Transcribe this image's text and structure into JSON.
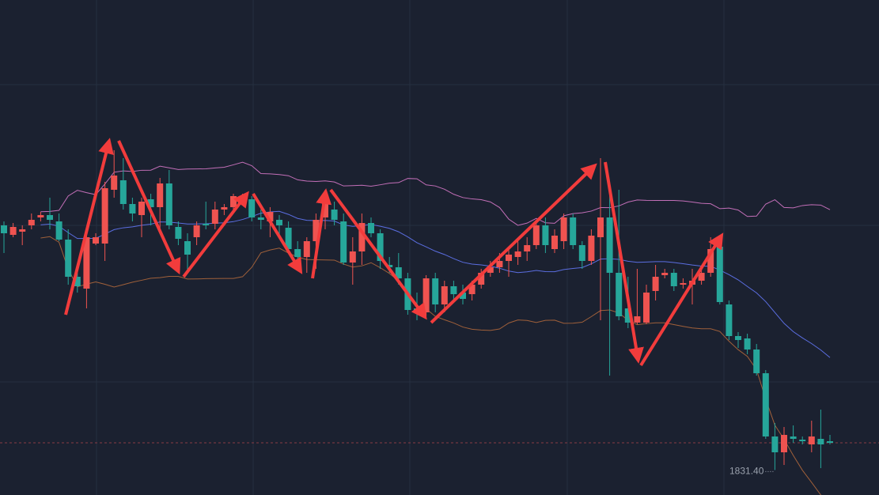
{
  "chart_data": {
    "type": "candlestick",
    "open": [
      1908.75,
      1905.75,
      1906.75,
      1908.75,
      1911.25,
      1912,
      1910,
      1904.25,
      1892.5,
      1888.75,
      1903,
      1903,
      1920,
      1923,
      1915.5,
      1912,
      1917,
      1914.5,
      1922,
      1908.25,
      1903.75,
      1905,
      1909.25,
      1909.25,
      1913.75,
      1914.5,
      1917.5,
      1917,
      1911.25,
      1910,
      1910.5,
      1908,
      1901.25,
      1898.75,
      1903.75,
      1911.25,
      1913.75,
      1910,
      1897,
      1900.5,
      1909.5,
      1906.25,
      1896.25,
      1895.5,
      1892,
      1882.5,
      1881.25,
      1892,
      1883.75,
      1889.5,
      1887.5,
      1887,
      1890,
      1893.75,
      1895.5,
      1897.5,
      1898.75,
      1900.5,
      1902.5,
      1908.75,
      1901.25,
      1903.75,
      1911.25,
      1902.5,
      1897.5,
      1905,
      1911.25,
      1893.75,
      1882.5,
      1878,
      1878,
      1888,
      1893,
      1893.75,
      1890,
      1890,
      1891.25,
      1893.75,
      1902,
      1883.75,
      1873.75,
      1873,
      1869.5,
      1862,
      1842,
      1837,
      1842,
      1841,
      1839.5,
      1841.25,
      1840.5
    ],
    "high": [
      1910,
      1909.5,
      1908.75,
      1912.5,
      1913,
      1917.5,
      1912.5,
      1907.5,
      1893.75,
      1906.25,
      1906.25,
      1922.5,
      1932.5,
      1930,
      1917.5,
      1917.5,
      1918.75,
      1923.75,
      1926.25,
      1910,
      1906.25,
      1910,
      1916.25,
      1916.25,
      1915.5,
      1918.75,
      1918.75,
      1918,
      1913.75,
      1914.5,
      1912,
      1910,
      1903.75,
      1905,
      1912.5,
      1920,
      1916.25,
      1912.5,
      1905,
      1912.5,
      1911.25,
      1907.5,
      1898.75,
      1900,
      1893.75,
      1887.5,
      1893,
      1893.75,
      1891.25,
      1891.25,
      1890,
      1891.25,
      1895,
      1897.5,
      1900,
      1901.25,
      1903.75,
      1905,
      1910,
      1911.25,
      1907.5,
      1912.5,
      1912.5,
      1903.75,
      1907.5,
      1930,
      1920.5,
      1920,
      1892.5,
      1895,
      1890,
      1896.25,
      1895,
      1895,
      1892,
      1895,
      1895,
      1905,
      1903.75,
      1885,
      1875,
      1874.5,
      1871.25,
      1863,
      1846.25,
      1845,
      1845.5,
      1842,
      1847,
      1850.5,
      1842.5
    ],
    "low": [
      1900,
      1905,
      1902.5,
      1907.5,
      1910,
      1907.5,
      1903.75,
      1890,
      1887.5,
      1882.5,
      1902.5,
      1897.5,
      1917.5,
      1913.75,
      1910,
      1905,
      1908.75,
      1907.5,
      1907.5,
      1902.5,
      1893.75,
      1902.5,
      1907.5,
      1907.5,
      1912,
      1913,
      1916,
      1910,
      1907.5,
      1905,
      1905,
      1900,
      1896.25,
      1893.75,
      1895,
      1907.5,
      1908.75,
      1896.25,
      1890,
      1896.25,
      1905,
      1895,
      1893.75,
      1890,
      1880.5,
      1878.75,
      1880,
      1881.25,
      1881.25,
      1885,
      1883.75,
      1885,
      1888.75,
      1892.5,
      1893.75,
      1892.5,
      1896.25,
      1897.5,
      1901.25,
      1900,
      1900,
      1901.25,
      1901.25,
      1895,
      1896.25,
      1878.75,
      1861.25,
      1878.75,
      1876.25,
      1877.5,
      1877.5,
      1885,
      1892,
      1888,
      1888.75,
      1883.75,
      1890,
      1892.5,
      1883.75,
      1872.5,
      1870,
      1868,
      1861.25,
      1841.25,
      1831.4,
      1833,
      1840,
      1839.5,
      1837,
      1832,
      1839.5
    ],
    "close": [
      1906.25,
      1908.25,
      1907.5,
      1910.5,
      1912,
      1910.5,
      1904.25,
      1892.5,
      1889.5,
      1905,
      1905,
      1920.5,
      1924.5,
      1915.5,
      1912.5,
      1916.25,
      1914.5,
      1922,
      1908.75,
      1904.5,
      1899.5,
      1908.75,
      1908.75,
      1913.75,
      1914.5,
      1918,
      1918,
      1911.25,
      1910.5,
      1913,
      1908.75,
      1901.25,
      1898.75,
      1903.75,
      1910.5,
      1917.5,
      1910.5,
      1897,
      1900.5,
      1909.5,
      1906.25,
      1897.5,
      1895.5,
      1892,
      1882,
      1881.25,
      1892,
      1883.75,
      1889.5,
      1887,
      1885.5,
      1890,
      1893.75,
      1895.5,
      1897.5,
      1899.5,
      1900.5,
      1902.5,
      1908.75,
      1902.5,
      1905.5,
      1911.25,
      1902.5,
      1897.5,
      1905.5,
      1911.25,
      1893.75,
      1880,
      1878,
      1880,
      1887.5,
      1892.5,
      1893.75,
      1889.5,
      1890.5,
      1891.25,
      1893.75,
      1901.25,
      1884.5,
      1873.75,
      1872.5,
      1869.5,
      1862,
      1842,
      1837,
      1842.5,
      1841.25,
      1840.5,
      1842,
      1839.5,
      1840
    ],
    "up_color": "#ef5350",
    "down_color": "#26a69a",
    "ylim": [
      1823.5,
      1980
    ],
    "low_label": {
      "value": 1831.4,
      "label": "1831.40"
    }
  }
}
